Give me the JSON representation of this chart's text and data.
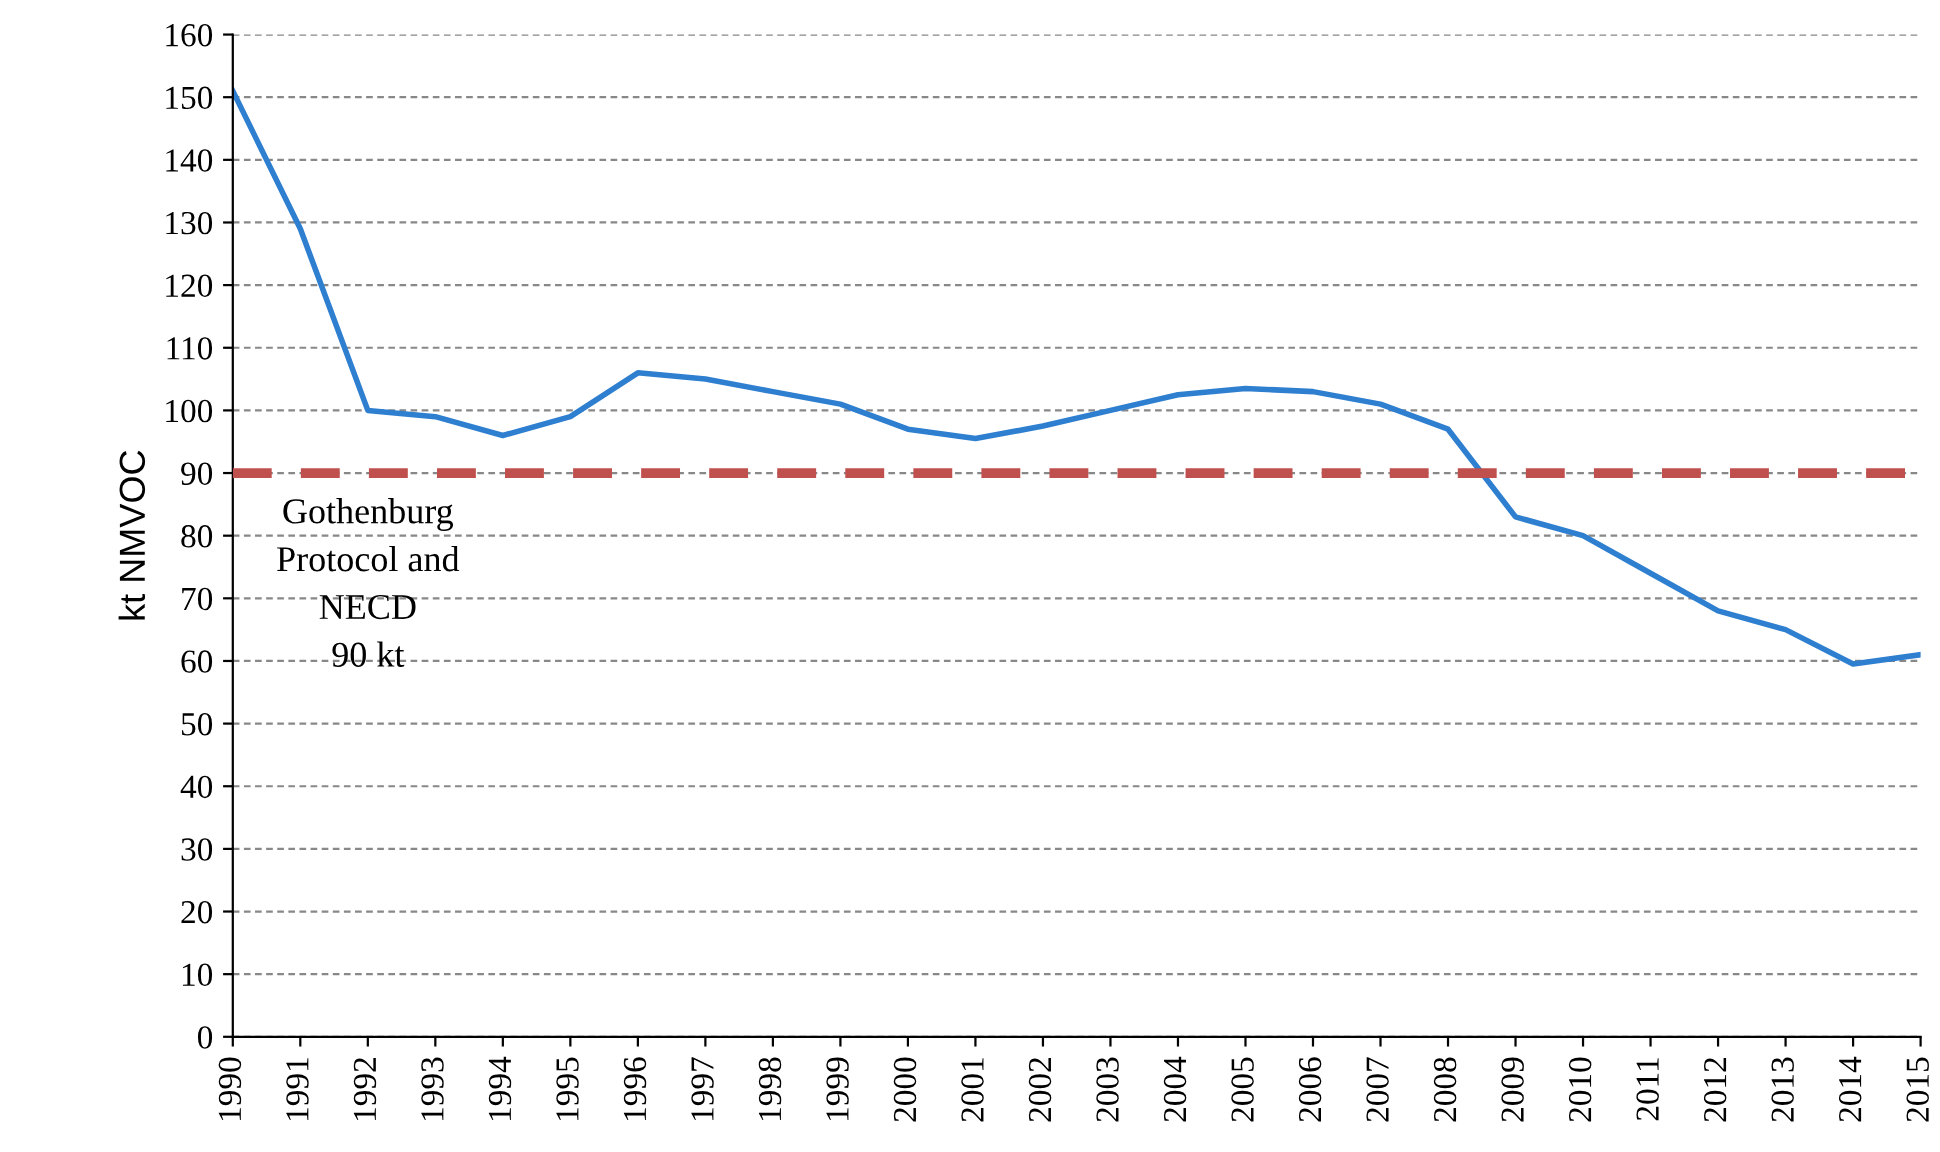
{
  "chart_data": {
    "type": "line",
    "ylabel": "kt NMVOC",
    "categories": [
      "1990",
      "1991",
      "1992",
      "1993",
      "1994",
      "1995",
      "1996",
      "1997",
      "1998",
      "1999",
      "2000",
      "2001",
      "2002",
      "2003",
      "2004",
      "2005",
      "2006",
      "2007",
      "2008",
      "2009",
      "2010",
      "2011",
      "2012",
      "2013",
      "2014",
      "2015"
    ],
    "series": [
      {
        "color": "#2e7fd0",
        "values": [
          151,
          129,
          100,
          99,
          96,
          99,
          106,
          105,
          103,
          101,
          97,
          95.5,
          97.5,
          100,
          102.5,
          103.5,
          103,
          101,
          97,
          83,
          80,
          74,
          68,
          65,
          59.5,
          61
        ]
      }
    ],
    "ylim": [
      0,
      160
    ],
    "yticks": [
      0,
      10,
      20,
      30,
      40,
      50,
      60,
      70,
      80,
      90,
      100,
      110,
      120,
      130,
      140,
      150,
      160
    ],
    "grid": "y",
    "legend": false,
    "marker": "none",
    "line_style": "solid",
    "ref_lines": [
      {
        "axis": "y",
        "value": 90,
        "label": "Gothenburg\nProtocol and\nNECD\n90 kt",
        "color": "#c0504d",
        "line_style": "dashed"
      }
    ]
  }
}
